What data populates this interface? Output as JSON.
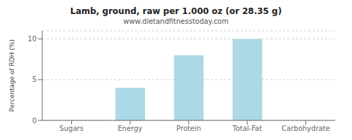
{
  "chart_data": {
    "type": "bar",
    "title": "Lamb, ground, raw per 1.000 oz (or 28.35 g)",
    "subtitle": "www.dietandfitnesstoday.com",
    "categories": [
      "Sugars",
      "Energy",
      "Protein",
      "Total-Fat",
      "Carbohydrate"
    ],
    "values": [
      0,
      4,
      8,
      10,
      0
    ],
    "color": "#add8e6",
    "ylabel": "Percentage of RDH (%)",
    "ylim": [
      0,
      11
    ],
    "yticks": [
      0,
      5,
      10
    ],
    "grid": true
  }
}
